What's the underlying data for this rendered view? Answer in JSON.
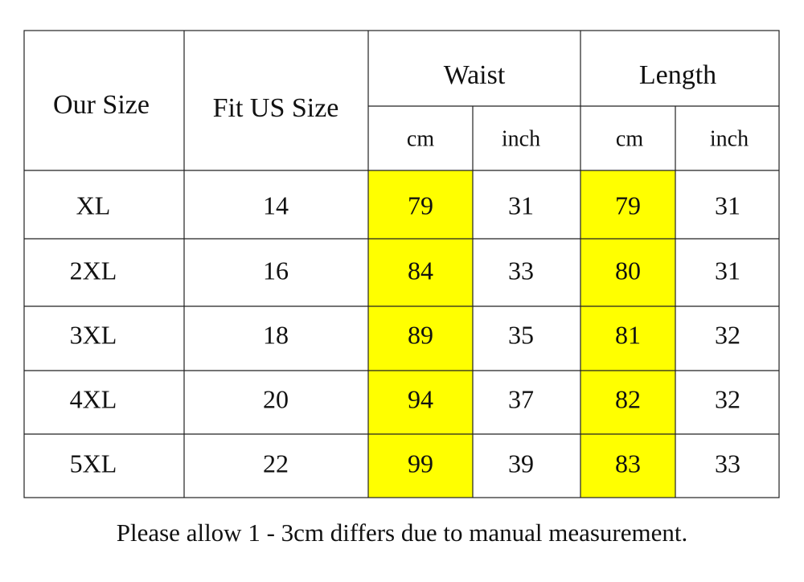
{
  "table": {
    "header": {
      "our_size": "Our Size",
      "fit_us_size": "Fit US Size",
      "groups": [
        {
          "label": "Waist",
          "units": [
            "cm",
            "inch"
          ]
        },
        {
          "label": "Length",
          "units": [
            "cm",
            "inch"
          ]
        }
      ]
    },
    "rows": [
      [
        "XL",
        14,
        79,
        31,
        79,
        31
      ],
      [
        "2XL",
        16,
        84,
        33,
        80,
        31
      ],
      [
        "3XL",
        18,
        89,
        35,
        81,
        32
      ],
      [
        "4XL",
        20,
        94,
        37,
        82,
        32
      ],
      [
        "5XL",
        22,
        99,
        39,
        83,
        33
      ]
    ]
  },
  "footnote": "Please allow 1 - 3cm differs due to manual measurement."
}
